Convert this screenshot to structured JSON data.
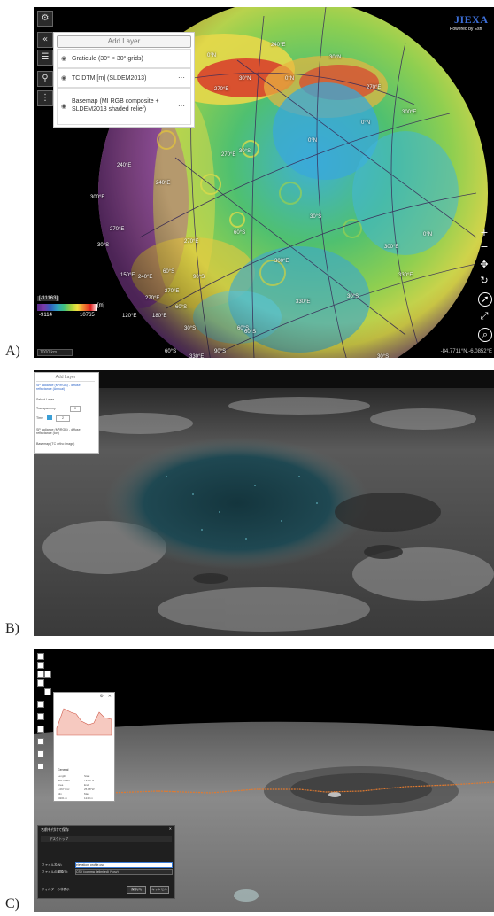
{
  "figure": {
    "panel_labels": [
      "A)",
      "B)",
      "C)"
    ]
  },
  "panelA": {
    "add_layer": "Add Layer",
    "layers": [
      {
        "name": "Graticule (30° × 30° grids)"
      },
      {
        "name": "TC DTM [m] (SLDEM2013)"
      },
      {
        "name": "Basemap (MI RGB composite + SLDEM2013 shaded relief)"
      }
    ],
    "logo_text": "JIEXA",
    "powered_by": "Powered by Esri",
    "legend": {
      "range_box": "[-11163]",
      "unit": "[m]",
      "min": "-9114",
      "max": "10765"
    },
    "coordinates": "-84.7711°N,-6.0852°E",
    "scale_text": "1000 km",
    "globe_labels": [
      "240°E",
      "0°N",
      "30°N",
      "270°E",
      "0°N",
      "30°N",
      "270°E",
      "0°N",
      "300°E",
      "30°S",
      "0°N",
      "270°E",
      "240°E",
      "240°E",
      "30°S",
      "300°E",
      "0°N",
      "60°S",
      "270°E",
      "60°S",
      "300°E",
      "30°S",
      "330°E",
      "60°S",
      "330°E",
      "30°S",
      "270°E",
      "240°E",
      "30°S",
      "270°E",
      "300°E",
      "330°E",
      "60°S",
      "90°S",
      "60°S",
      "270°E",
      "180°E",
      "150°E",
      "120°E",
      "90°S",
      "60°S",
      "30°S"
    ],
    "colors": {
      "water": "#3fa9c9",
      "green": "#4fbf63",
      "yellow": "#d9d94a",
      "red": "#d83a2a",
      "purple": "#8a3e9e"
    }
  },
  "panelB": {
    "add_layer": "Add Layer",
    "rows": [
      "SP radiance (M³/RGB) - diffuse reflectance (Annual)",
      "Select Layer",
      "Transparency",
      "Time",
      "SP radiance (M³/RGB) - diffuse reflectance (lon)",
      "Basemap (TC ortho image)"
    ],
    "transparency_value": "0",
    "time_value": "2"
  },
  "panelC": {
    "prop_title": "General",
    "prop_rows": [
      [
        "Length",
        "Start"
      ],
      [
        "400.78 km",
        "79.86°N"
      ],
      [
        "Area",
        "End"
      ],
      [
        "1.067 km²",
        "25.88°W"
      ],
      [
        "Min",
        "Max"
      ],
      [
        "-3201 m",
        "1248 m"
      ]
    ],
    "dialog_title": "名前を付けて保存",
    "dialog_path": "デスクトップ",
    "file_name_label": "ファイル名(N):",
    "file_name_value": "elevation_profile.csv",
    "file_type_label": "ファイルの種類(T):",
    "file_type_value": "CSV (comma delimited) (*.csv)",
    "folder_toggle": "フォルダーの非表示",
    "save_label": "保存(S)",
    "cancel_label": "キャンセル"
  }
}
